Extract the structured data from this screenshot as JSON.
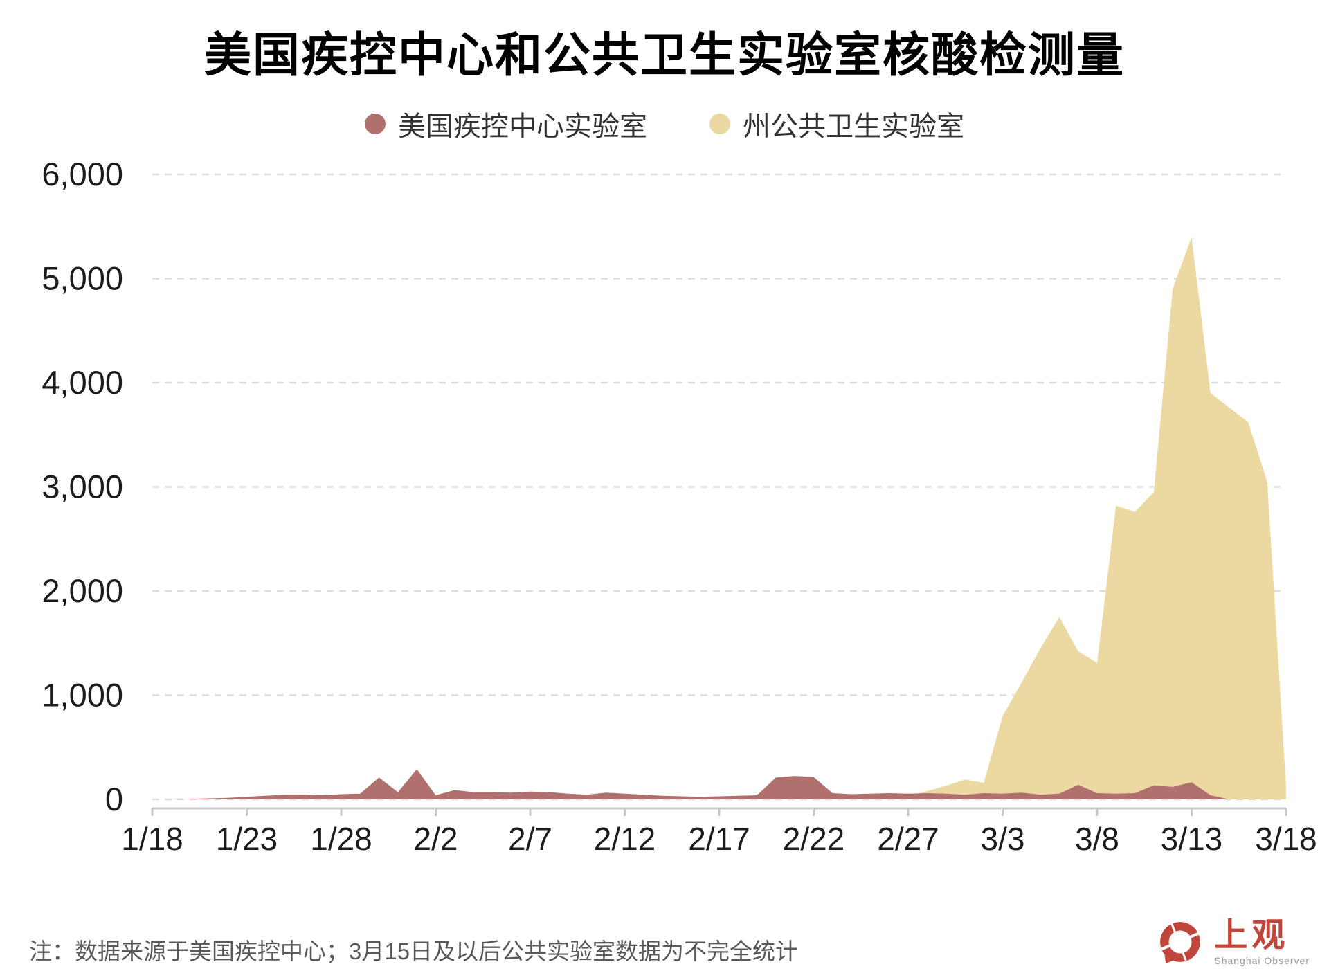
{
  "title": "美国疾控中心和公共卫生实验室核酸检测量",
  "legend": [
    {
      "label": "美国疾控中心实验室",
      "color": "#b0706d"
    },
    {
      "label": "州公共卫生实验室",
      "color": "#ecd9a1"
    }
  ],
  "note": "注：数据来源于美国疾控中心；3月15日及以后公共实验室数据为不完全统计",
  "logo": {
    "text": "上观",
    "subtext": "Shanghai Observer",
    "color": "#c0453a"
  },
  "colors": {
    "cdc_series": "#b0706d",
    "state_series": "#ecd9a1",
    "gridline": "#dedede",
    "axis": "#c8c8c8",
    "title_text": "#000000",
    "note_text": "#595959"
  },
  "chart_data": {
    "type": "area",
    "title": "美国疾控中心和公共卫生实验室核酸检测量",
    "xlabel": "",
    "ylabel": "",
    "ylim": [
      0,
      6000
    ],
    "y_ticks": [
      0,
      1000,
      2000,
      3000,
      4000,
      5000,
      6000
    ],
    "y_tick_labels": [
      "0",
      "1,000",
      "2,000",
      "3,000",
      "4,000",
      "5,000",
      "6,000"
    ],
    "grid": "dashed-horizontal",
    "legend_position": "top-center",
    "tick_labels": [
      "1/18",
      "1/23",
      "1/28",
      "2/2",
      "2/7",
      "2/12",
      "2/17",
      "2/22",
      "2/27",
      "3/3",
      "3/8",
      "3/13",
      "3/18"
    ],
    "tick_indices": [
      0,
      5,
      10,
      15,
      20,
      25,
      30,
      35,
      40,
      45,
      50,
      55,
      60
    ],
    "dates": [
      "1/18",
      "1/19",
      "1/20",
      "1/21",
      "1/22",
      "1/23",
      "1/24",
      "1/25",
      "1/26",
      "1/27",
      "1/28",
      "1/29",
      "1/30",
      "1/31",
      "2/1",
      "2/2",
      "2/3",
      "2/4",
      "2/5",
      "2/6",
      "2/7",
      "2/8",
      "2/9",
      "2/10",
      "2/11",
      "2/12",
      "2/13",
      "2/14",
      "2/15",
      "2/16",
      "2/17",
      "2/18",
      "2/19",
      "2/20",
      "2/21",
      "2/22",
      "2/23",
      "2/24",
      "2/25",
      "2/26",
      "2/27",
      "2/28",
      "2/29",
      "3/1",
      "3/2",
      "3/3",
      "3/4",
      "3/5",
      "3/6",
      "3/7",
      "3/8",
      "3/9",
      "3/10",
      "3/11",
      "3/12",
      "3/13",
      "3/14",
      "3/15",
      "3/16",
      "3/17",
      "3/18"
    ],
    "series": [
      {
        "name": "州公共卫生实验室",
        "color": "#ecd9a1",
        "values": [
          0,
          0,
          0,
          0,
          0,
          0,
          0,
          0,
          0,
          0,
          0,
          0,
          0,
          0,
          0,
          0,
          0,
          0,
          0,
          0,
          0,
          0,
          0,
          0,
          0,
          0,
          0,
          0,
          0,
          0,
          0,
          0,
          0,
          0,
          0,
          0,
          0,
          0,
          10,
          20,
          30,
          80,
          130,
          190,
          160,
          800,
          1120,
          1450,
          1750,
          1420,
          1310,
          2820,
          2760,
          2950,
          4900,
          5400,
          3900,
          3760,
          3620,
          3050,
          120
        ]
      },
      {
        "name": "美国疾控中心实验室",
        "color": "#b0706d",
        "values": [
          0,
          0,
          5,
          10,
          15,
          25,
          35,
          45,
          45,
          40,
          50,
          55,
          210,
          70,
          290,
          40,
          90,
          70,
          70,
          65,
          75,
          70,
          55,
          45,
          65,
          55,
          45,
          35,
          30,
          25,
          30,
          35,
          40,
          210,
          225,
          215,
          60,
          50,
          55,
          60,
          55,
          60,
          55,
          45,
          60,
          55,
          65,
          45,
          55,
          140,
          60,
          55,
          60,
          135,
          120,
          165,
          40,
          0,
          0,
          0,
          0
        ]
      }
    ]
  }
}
